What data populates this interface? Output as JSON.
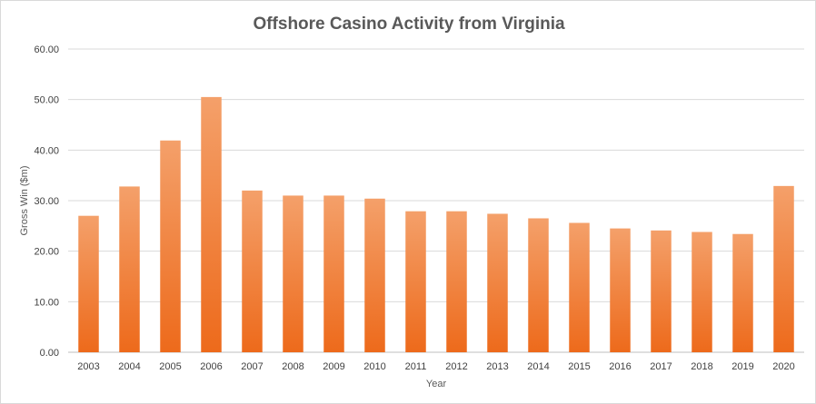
{
  "chart_data": {
    "type": "bar",
    "title": "Offshore Casino Activity from Virginia",
    "xlabel": "Year",
    "ylabel": "Gross Win ($m)",
    "ylim": [
      0,
      60
    ],
    "yticks": [
      "0.00",
      "10.00",
      "20.00",
      "30.00",
      "40.00",
      "50.00",
      "60.00"
    ],
    "grid": true,
    "legend": "none",
    "bar_color_top": "#f4a06a",
    "bar_color_bottom": "#ed6a1b",
    "categories": [
      "2003",
      "2004",
      "2005",
      "2006",
      "2007",
      "2008",
      "2009",
      "2010",
      "2011",
      "2012",
      "2013",
      "2014",
      "2015",
      "2016",
      "2017",
      "2018",
      "2019",
      "2020"
    ],
    "values": [
      27.0,
      32.8,
      41.9,
      50.5,
      32.0,
      31.0,
      31.0,
      30.4,
      27.9,
      27.9,
      27.4,
      26.5,
      25.6,
      24.5,
      24.1,
      23.8,
      23.4,
      32.9
    ]
  }
}
